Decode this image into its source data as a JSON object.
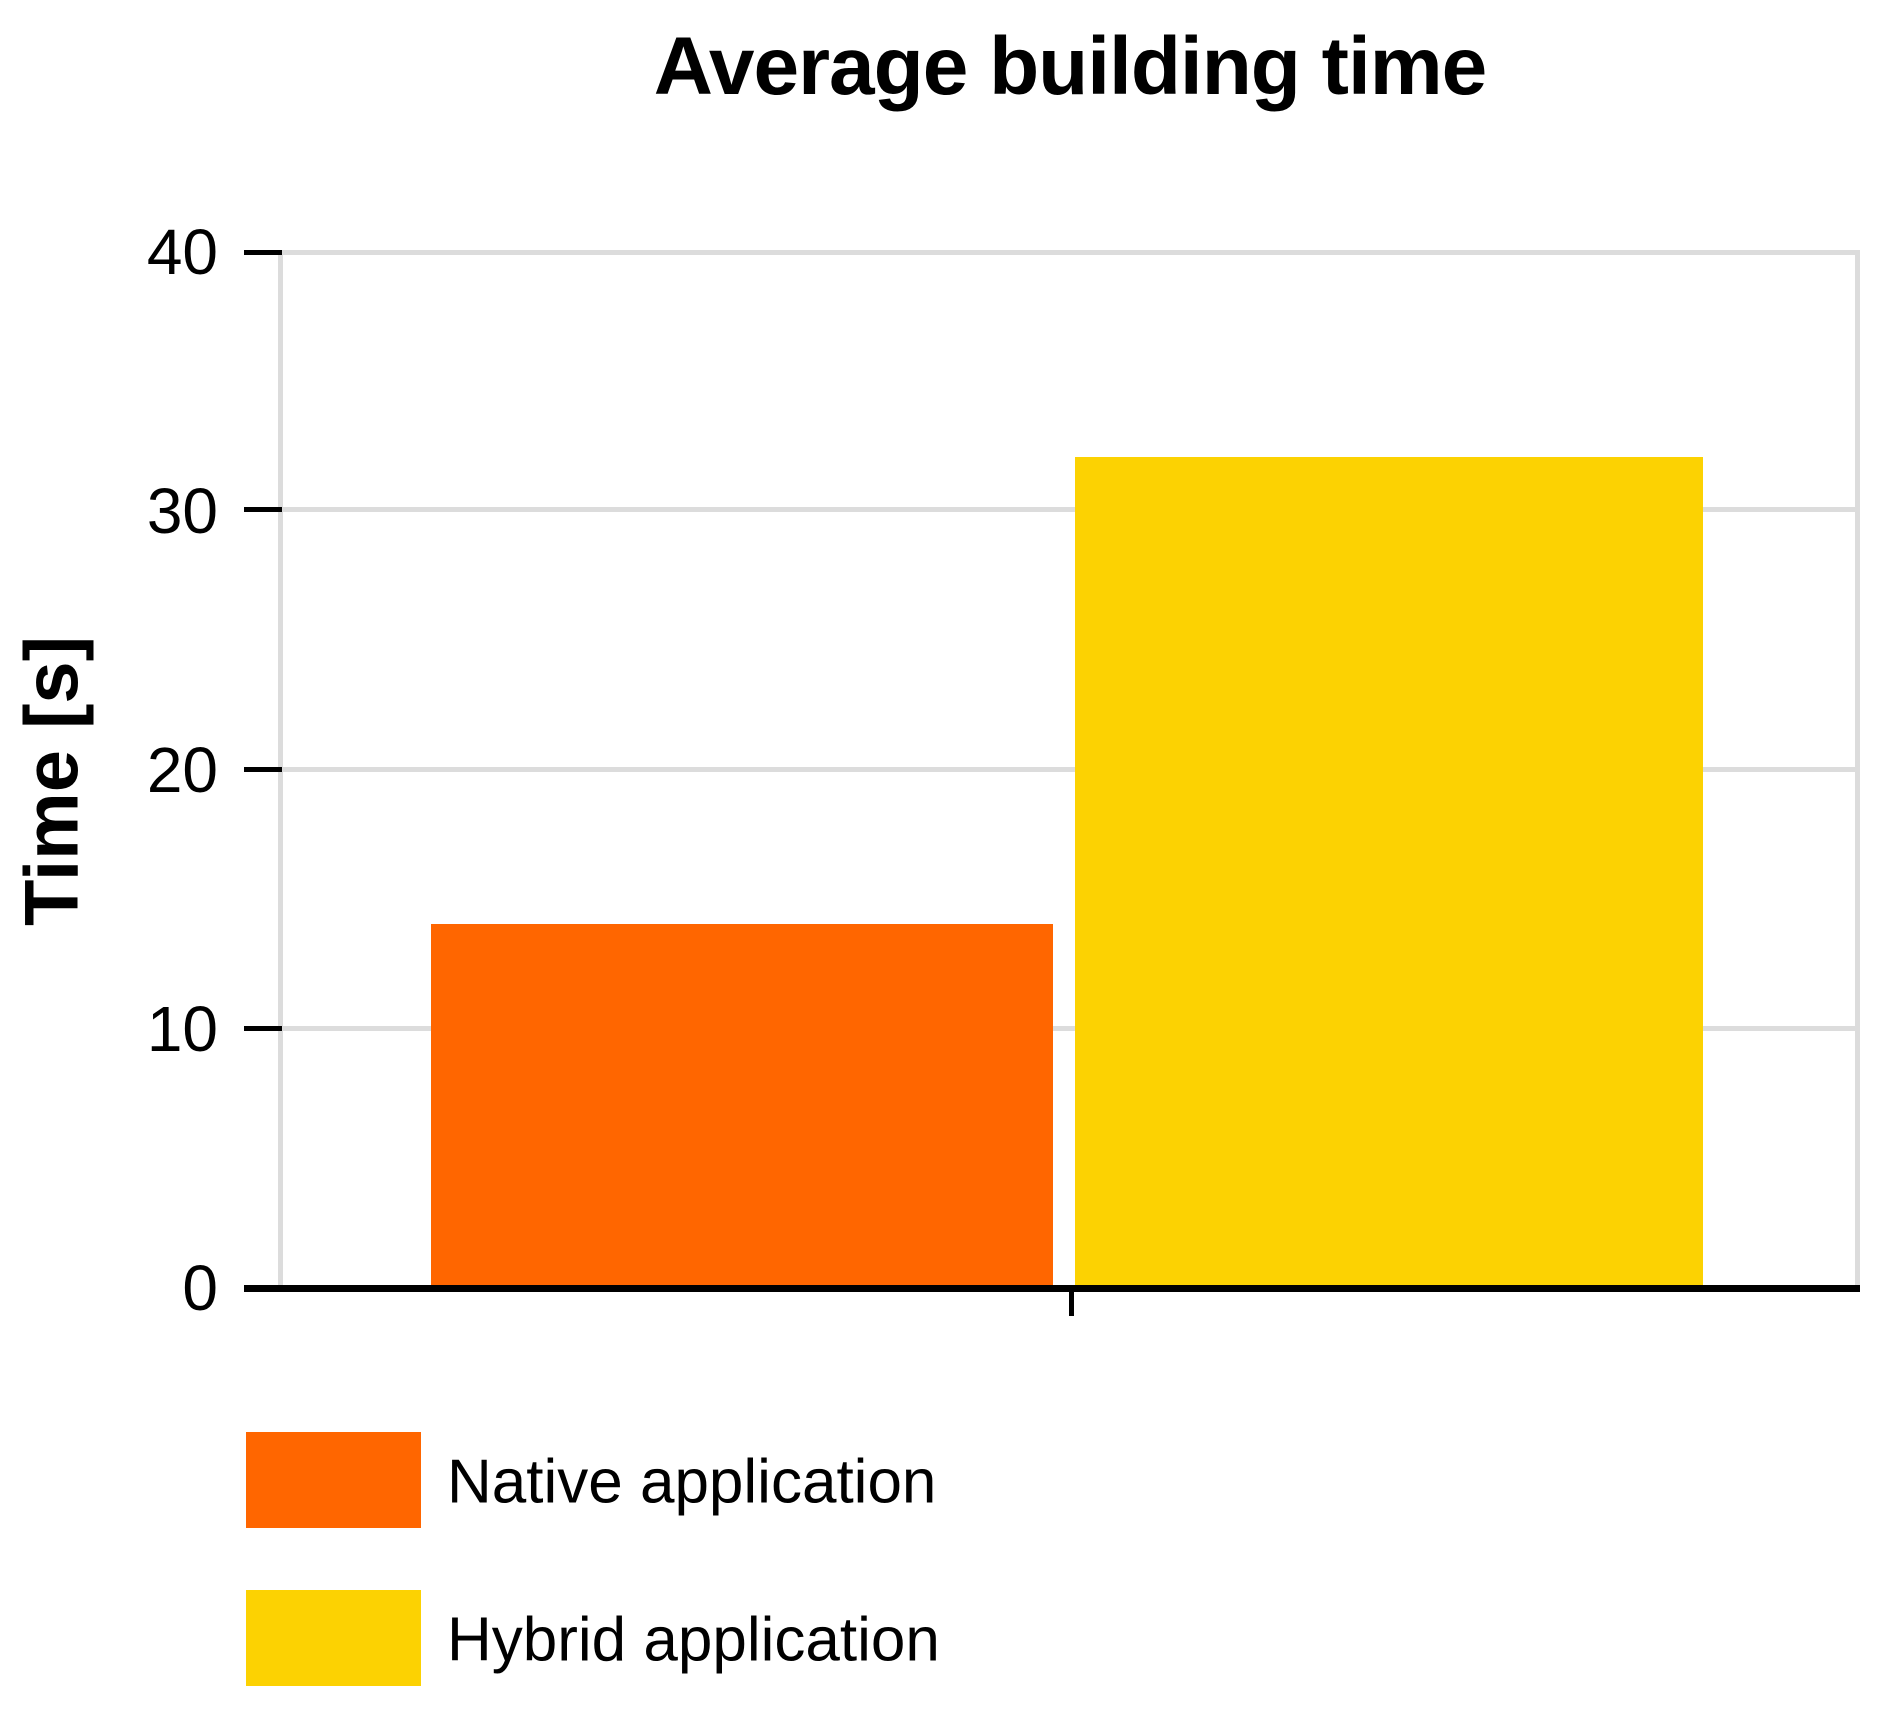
{
  "chart_data": {
    "type": "bar",
    "title": "Average building time",
    "ylabel": "Time [s]",
    "xlabel": "",
    "categories": [
      ""
    ],
    "series": [
      {
        "name": "Native application",
        "values": [
          14
        ],
        "color": "#FF6600"
      },
      {
        "name": "Hybrid application",
        "values": [
          32
        ],
        "color": "#FCD202"
      }
    ],
    "ylim": [
      0,
      40
    ],
    "yticks": [
      0,
      10,
      20,
      30,
      40
    ],
    "grid": true,
    "gridline_color": "#DCDCDC",
    "axis_color": "#000000",
    "legend_position": "bottom-left"
  }
}
